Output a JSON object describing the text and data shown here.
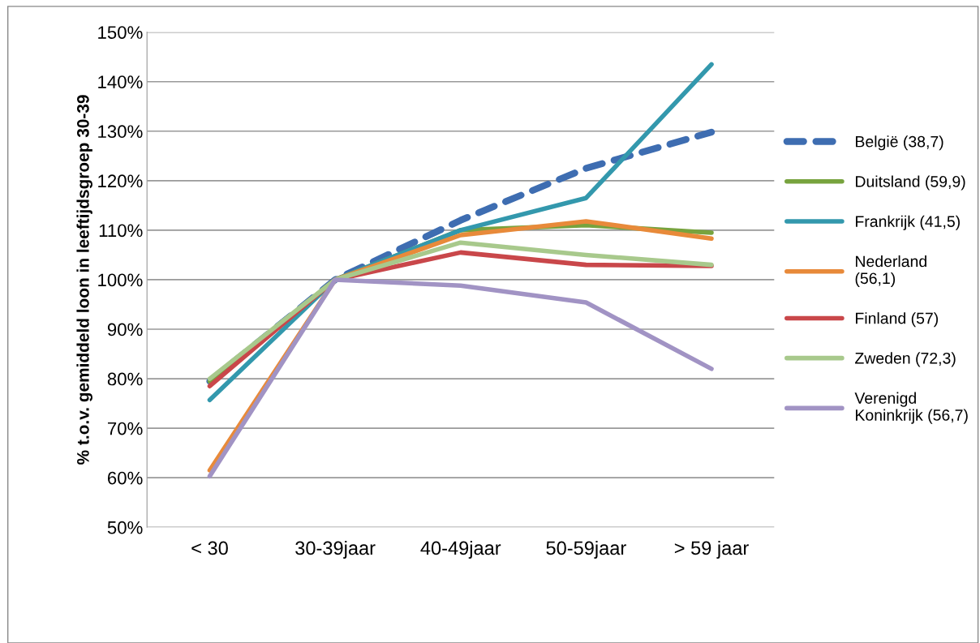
{
  "chart_data": {
    "type": "line",
    "ylabel": "% t.o.v. gemiddeld loon in leeftijdsgroep 30-39",
    "categories": [
      "< 30",
      "30-39jaar",
      "40-49jaar",
      "50-59jaar",
      "> 59 jaar"
    ],
    "ylim": [
      50,
      150
    ],
    "yticks": [
      {
        "value": 50,
        "label": "50%"
      },
      {
        "value": 60,
        "label": "60%"
      },
      {
        "value": 70,
        "label": "70%"
      },
      {
        "value": 80,
        "label": "80%"
      },
      {
        "value": 90,
        "label": "90%"
      },
      {
        "value": 100,
        "label": "100%"
      },
      {
        "value": 110,
        "label": "110%"
      },
      {
        "value": 120,
        "label": "120%"
      },
      {
        "value": 130,
        "label": "130%"
      },
      {
        "value": 140,
        "label": "140%"
      },
      {
        "value": 150,
        "label": "150%"
      }
    ],
    "grid": "y",
    "legend": "right",
    "marker": "none",
    "series": [
      {
        "name": "België (38,7)",
        "color": "#3e6db1",
        "line_style": "dashed",
        "values": [
          79.5,
          100,
          112,
          122.5,
          129.8
        ]
      },
      {
        "name": "Duitsland (59,9)",
        "color": "#77a33e",
        "values": [
          79.5,
          100,
          110,
          111,
          109.5
        ]
      },
      {
        "name": "Frankrijk (41,5)",
        "color": "#3398ad",
        "values": [
          75.7,
          100,
          110,
          116.5,
          143.5
        ]
      },
      {
        "name": "Nederland\n(56,1)",
        "color": "#e88a3a",
        "values": [
          61.5,
          100,
          109,
          111.8,
          108.3
        ]
      },
      {
        "name": "Finland (57)",
        "color": "#c9474a",
        "values": [
          78.5,
          100,
          105.5,
          103,
          102.8
        ]
      },
      {
        "name": "Zweden (72,3)",
        "color": "#a8c98c",
        "values": [
          80,
          100,
          107.5,
          105,
          103
        ]
      },
      {
        "name": "Verenigd\nKoninkrijk (56,7)",
        "color": "#a193c4",
        "values": [
          60.3,
          100,
          98.8,
          95.4,
          82
        ]
      }
    ]
  }
}
